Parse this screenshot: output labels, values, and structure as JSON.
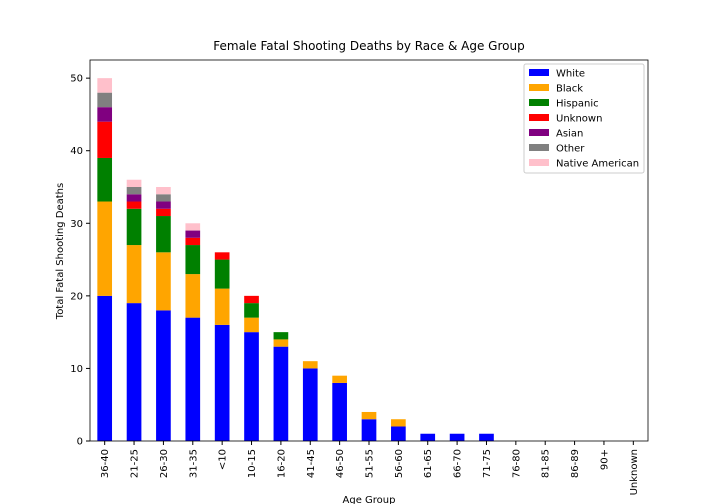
{
  "chart_data": {
    "type": "stacked_bar",
    "title": "Female Fatal Shooting Deaths by Race & Age Group",
    "x_label": "Age Group",
    "y_label": "Total Fatal Shooting Deaths",
    "categories": [
      "36-40",
      "21-25",
      "26-30",
      "31-35",
      "<10",
      "10-15",
      "16-20",
      "41-45",
      "46-50",
      "51-55",
      "56-60",
      "61-65",
      "66-70",
      "71-75",
      "76-80",
      "81-85",
      "86-89",
      "90+",
      "Unknown"
    ],
    "series": [
      {
        "name": "White",
        "color": "#0000ff",
        "values": [
          20,
          19,
          18,
          17,
          16,
          15,
          13,
          10,
          8,
          3,
          2,
          1,
          1,
          1,
          0,
          0,
          0,
          0,
          0
        ]
      },
      {
        "name": "Black",
        "color": "#ffa500",
        "values": [
          13,
          8,
          8,
          6,
          5,
          2,
          1,
          1,
          1,
          1,
          1,
          0,
          0,
          0,
          0,
          0,
          0,
          0,
          0
        ]
      },
      {
        "name": "Hispanic",
        "color": "#008000",
        "values": [
          6,
          5,
          5,
          4,
          4,
          2,
          1,
          0,
          0,
          0,
          0,
          0,
          0,
          0,
          0,
          0,
          0,
          0,
          0
        ]
      },
      {
        "name": "Unknown",
        "color": "#ff0000",
        "values": [
          5,
          1,
          1,
          1,
          1,
          1,
          0,
          0,
          0,
          0,
          0,
          0,
          0,
          0,
          0,
          0,
          0,
          0,
          0
        ]
      },
      {
        "name": "Asian",
        "color": "#800080",
        "values": [
          2,
          1,
          1,
          1,
          0,
          0,
          0,
          0,
          0,
          0,
          0,
          0,
          0,
          0,
          0,
          0,
          0,
          0,
          0
        ]
      },
      {
        "name": "Other",
        "color": "#808080",
        "values": [
          2,
          1,
          1,
          0,
          0,
          0,
          0,
          0,
          0,
          0,
          0,
          0,
          0,
          0,
          0,
          0,
          0,
          0,
          0
        ]
      },
      {
        "name": "Native American",
        "color": "#ffc0cb",
        "values": [
          2,
          1,
          1,
          1,
          0,
          0,
          0,
          0,
          0,
          0,
          0,
          0,
          0,
          0,
          0,
          0,
          0,
          0,
          0
        ]
      }
    ],
    "ylim": [
      0,
      52.5
    ],
    "yticks": [
      0,
      10,
      20,
      30,
      40,
      50
    ],
    "legend": "upper right"
  }
}
